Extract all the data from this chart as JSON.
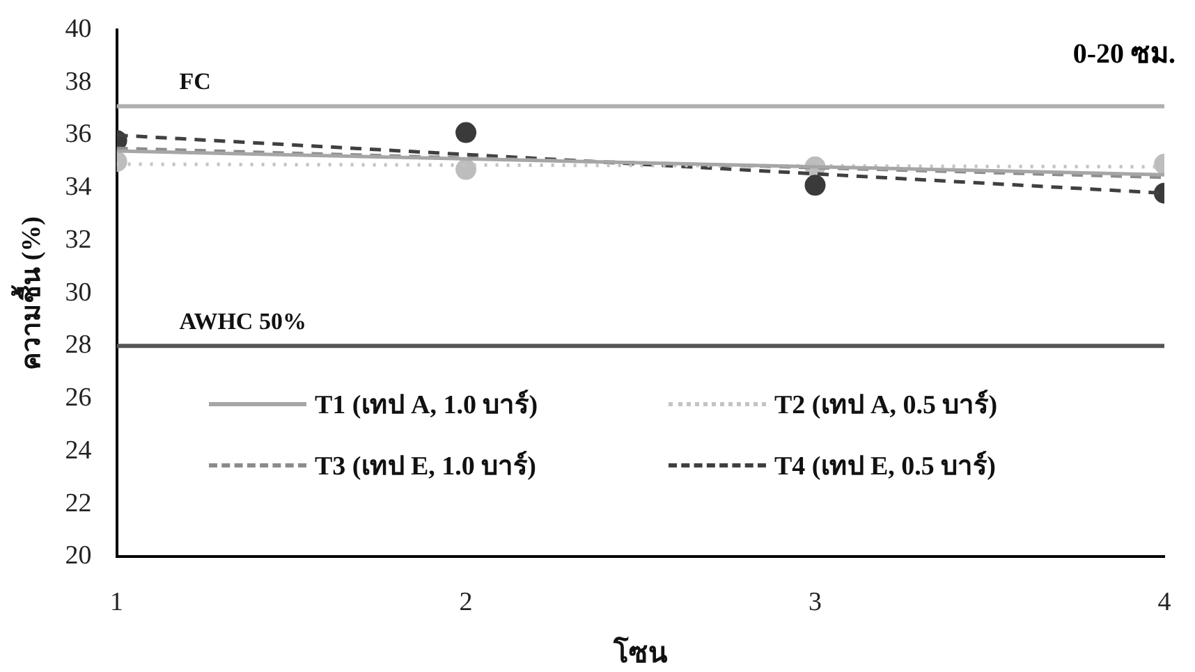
{
  "chart_data": {
    "type": "line",
    "title": "0-20 ซม.",
    "xlabel": "โซน",
    "ylabel": "ความชื้น (%)",
    "xlim": [
      1,
      4
    ],
    "xticks": [
      1,
      2,
      3,
      4
    ],
    "ylim": [
      20,
      40
    ],
    "yticks": [
      20,
      22,
      24,
      26,
      28,
      30,
      32,
      34,
      36,
      38,
      40
    ],
    "grid": false,
    "legend": "bottom",
    "marker": "none",
    "series": [
      {
        "name": "T1 (เทป A, 1.0 บาร์)",
        "color": "#a6a6a6",
        "x": [
          1,
          4
        ],
        "values": [
          35.4,
          34.5
        ],
        "line_style": "solid"
      },
      {
        "name": "T2 (เทป A, 0.5 บาร์)",
        "color": "#c4c4c4",
        "x": [
          1,
          4
        ],
        "values": [
          34.9,
          34.8
        ],
        "line_style": "dotted"
      },
      {
        "name": "T3 (เทป E, 1.0 บาร์)",
        "color": "#8c8c8c",
        "x": [
          1,
          4
        ],
        "values": [
          35.5,
          34.4
        ],
        "line_style": "dashed"
      },
      {
        "name": "T4 (เทป E, 0.5 บาร์)",
        "color": "#404040",
        "x": [
          1,
          4
        ],
        "values": [
          36.0,
          33.8
        ],
        "line_style": "dashed"
      },
      {
        "type": "scatter",
        "color": "#3a3a3a",
        "x": [
          1,
          2,
          3,
          4
        ],
        "values": [
          35.8,
          36.1,
          34.1,
          33.8
        ],
        "marker": "circle"
      },
      {
        "type": "scatter",
        "color": "#bdbdbd",
        "x": [
          1,
          2,
          3,
          4
        ],
        "values": [
          35.0,
          34.7,
          34.8,
          34.9
        ],
        "marker": "circle"
      }
    ],
    "ref_lines": [
      {
        "axis": "y",
        "value": 37.1,
        "label": "FC",
        "color": "#b0b0b0"
      },
      {
        "axis": "y",
        "value": 28,
        "label": "AWHC 50%",
        "color": "#555555"
      }
    ]
  }
}
